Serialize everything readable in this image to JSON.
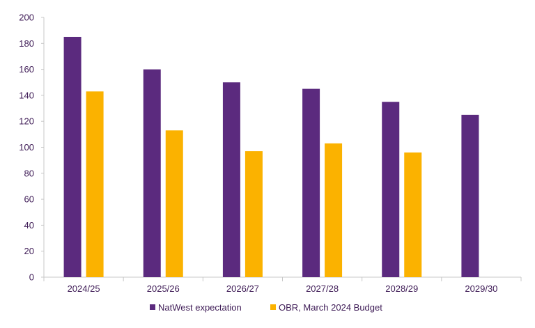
{
  "chart_data": {
    "type": "bar",
    "categories": [
      "2024/25",
      "2025/26",
      "2026/27",
      "2027/28",
      "2028/29",
      "2029/30"
    ],
    "series": [
      {
        "name": "NatWest expectation",
        "values": [
          185,
          160,
          150,
          145,
          135,
          125
        ],
        "color": "#5b2a7e"
      },
      {
        "name": "OBR, March 2024 Budget",
        "values": [
          143,
          113,
          97,
          103,
          96,
          null
        ],
        "color": "#fbb200"
      }
    ],
    "yticks": [
      0,
      20,
      40,
      60,
      80,
      100,
      120,
      140,
      160,
      180,
      200
    ],
    "ylim": [
      0,
      200
    ],
    "grid": false,
    "legend": "bottom-center",
    "text_color": "#3d1a55",
    "axis_color": "#c8c8c8"
  }
}
